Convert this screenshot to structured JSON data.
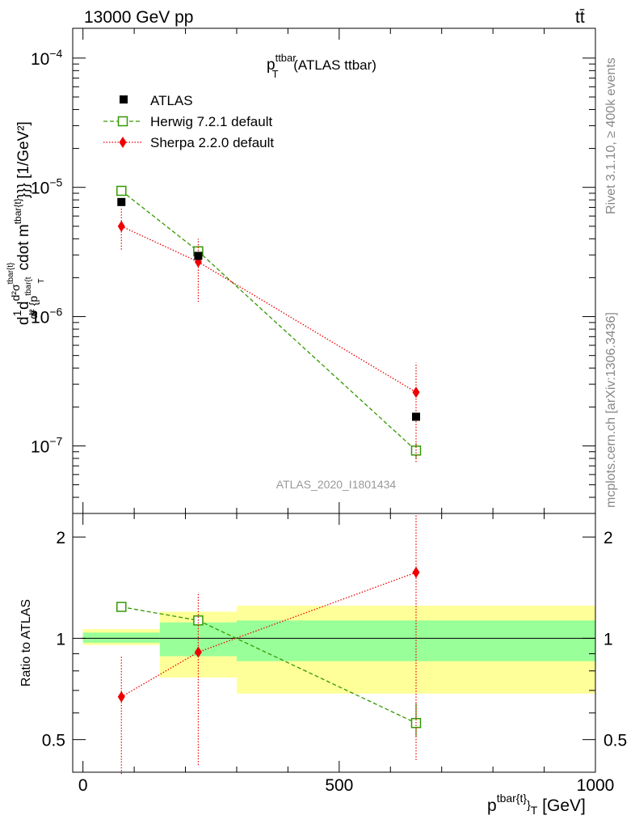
{
  "header": {
    "left": "13000 GeV pp",
    "right": "tt̄"
  },
  "side_labels": {
    "rivet": "Rivet 3.1.10, ≥ 400k events",
    "mcplots": "mcplots.cern.ch [arXiv:1306.3436]"
  },
  "chart_data": [
    {
      "type": "scatter",
      "title": {
        "main": "p",
        "sup": "ttbar",
        "sub": "T",
        "suffix": " (ATLAS ttbar)"
      },
      "ylabel": "d\\frac{1}{\\sigma}d\\frac{d^2\\sigma^{tbar{t}}}{d^2{p^{tbar{t}}_T}cdot m^{tbar{t}}}} [1/GeV^2]",
      "ylabel_parts": {
        "pre": "d",
        "frac1_num": "1",
        "frac1_den": "σ",
        "mid": "d",
        "frac2_num": "d²σ",
        "frac2_num_sup": "tbar{t}",
        "frac2_den": "d² {p",
        "frac2_den_sup": "tbar{t",
        "frac2_den_sub": "T",
        "post": "cdot m",
        "post_sup": "tbar{t}",
        "post_tail": "}}} [1/GeV²]"
      },
      "yscale": "log",
      "ylim": [
        3e-08,
        0.00017
      ],
      "xlim": [
        -20,
        1000
      ],
      "ytick_labels": [
        {
          "value": 1e-07,
          "base": "10",
          "exp": "−7"
        },
        {
          "value": 1e-06,
          "base": "10",
          "exp": "−6"
        },
        {
          "value": 1e-05,
          "base": "10",
          "exp": "−5"
        },
        {
          "value": 0.0001,
          "base": "10",
          "exp": "−4"
        }
      ],
      "annotation": "ATLAS_2020_I1801434",
      "legend_position": "top-left",
      "series": [
        {
          "name": "ATLAS",
          "style": "black-square",
          "x": [
            75,
            225,
            650
          ],
          "y": [
            7.7e-06,
            2.95e-06,
            1.68e-07
          ]
        },
        {
          "name": "Herwig 7.2.1 default",
          "style": "green-open-square-dashed",
          "x": [
            75,
            225,
            650
          ],
          "y": [
            9.4e-06,
            3.2e-06,
            9.2e-08
          ],
          "err_low": [
            9.4e-06,
            3.2e-06,
            8e-08
          ],
          "err_high": [
            9.4e-06,
            3.2e-06,
            1.05e-07
          ]
        },
        {
          "name": "Sherpa 2.2.0 default",
          "style": "red-diamond-dotted",
          "x": [
            75,
            225,
            650
          ],
          "y": [
            5e-06,
            2.65e-06,
            2.6e-07
          ],
          "err_low": [
            3.3e-06,
            1.3e-06,
            7.5e-08
          ],
          "err_high": [
            6.9e-06,
            4e-06,
            4.4e-07
          ]
        }
      ]
    },
    {
      "type": "scatter",
      "xlabel": {
        "main": "p",
        "sup": "tbar{t}",
        "mid": "}",
        "sub": "T",
        "suffix": " [GeV]"
      },
      "ylabel": "Ratio to ATLAS",
      "yscale": "log",
      "ylim": [
        0.4,
        2.35
      ],
      "xlim": [
        -20,
        1000
      ],
      "xtick_labels": [
        {
          "value": 0,
          "label": "0"
        },
        {
          "value": 500,
          "label": "500"
        },
        {
          "value": 1000,
          "label": "1000"
        }
      ],
      "ytick_labels": [
        {
          "value": 0.5,
          "label": "0.5"
        },
        {
          "value": 1,
          "label": "1"
        },
        {
          "value": 2,
          "label": "2"
        }
      ],
      "reference_line": 1,
      "bands": [
        {
          "x0": 0,
          "x1": 150,
          "inner": [
            0.97,
            1.04
          ],
          "outer": [
            0.955,
            1.065
          ]
        },
        {
          "x0": 150,
          "x1": 300,
          "inner": [
            0.885,
            1.115
          ],
          "outer": [
            0.765,
            1.2
          ]
        },
        {
          "x0": 300,
          "x1": 1000,
          "inner": [
            0.855,
            1.13
          ],
          "outer": [
            0.685,
            1.25
          ]
        }
      ],
      "band_colors": {
        "inner": "#99ff99",
        "outer": "#ffff99"
      },
      "series": [
        {
          "name": "Herwig 7.2.1 default",
          "style": "green-open-square-dashed",
          "x": [
            75,
            225,
            650
          ],
          "y": [
            1.24,
            1.13,
            0.56
          ],
          "err_low": [
            1.24,
            1.13,
            0.51
          ],
          "err_high": [
            1.24,
            1.13,
            0.64
          ]
        },
        {
          "name": "Sherpa 2.2.0 default",
          "style": "red-diamond-dotted",
          "x": [
            75,
            225,
            650
          ],
          "y": [
            0.67,
            0.91,
            1.57
          ],
          "err_low": [
            0.395,
            0.42,
            0.435
          ],
          "err_high": [
            0.885,
            1.37,
            2.35
          ]
        }
      ]
    }
  ],
  "colors": {
    "atlas": "#000000",
    "herwig": "#339900",
    "sherpa": "#ee0000",
    "side_text": "#888888",
    "annotation": "#999999"
  }
}
